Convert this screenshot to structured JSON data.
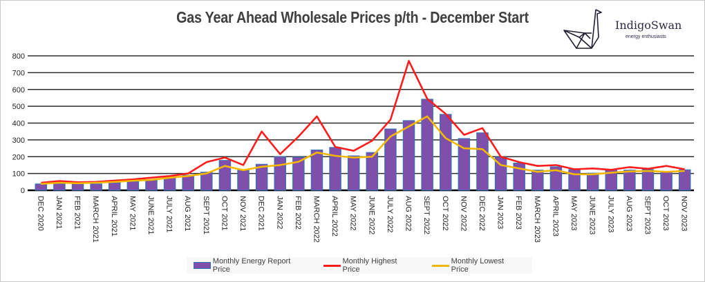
{
  "chart_data": {
    "type": "bar",
    "title": "Gas Year Ahead Wholesale Prices p/th - December Start",
    "xlabel": "",
    "ylabel": "",
    "ylim": [
      0,
      800
    ],
    "yticks": [
      0,
      100,
      200,
      300,
      400,
      500,
      600,
      700,
      800
    ],
    "grid": true,
    "legend_position": "bottom",
    "categories": [
      "DEC 2020",
      "JAN 2021",
      "FEB 2021",
      "MARCH 2021",
      "APRIL 2021",
      "MAY 2021",
      "JUNE 2021",
      "JULY 2021",
      "AUG 2021",
      "SEPT 2021",
      "OCT 2021",
      "NOV 2021",
      "DEC  2021",
      "JAN 2022",
      "FEB 2022",
      "MARCH 2022",
      "APRIL 2022",
      "MAY 2022",
      "JUNE 2022",
      "JULY 2022",
      "AUG 2022",
      "SEPT 2022",
      "OCT 2022",
      "NOV 2022",
      "DEC 2022",
      "JAN 2023",
      "FEB 2023",
      "MARCH 2023",
      "APRIL 2023",
      "MAY 2023",
      "JUNE 2023",
      "JULY 2023",
      "AUG 2023",
      "SEPT 2023",
      "OCT 2023",
      "NOV 2023"
    ],
    "series": [
      {
        "name": "Monthly Energy Report Price",
        "type": "bar",
        "color": "#7f4fab",
        "edge_color": "#2e75b6",
        "values": [
          38,
          40,
          38,
          38,
          45,
          52,
          60,
          85,
          90,
          108,
          178,
          120,
          155,
          200,
          198,
          240,
          255,
          205,
          225,
          365,
          415,
          542,
          452,
          308,
          342,
          198,
          162,
          120,
          140,
          123,
          102,
          122,
          120,
          123,
          112,
          122
        ]
      },
      {
        "name": "Monthly Highest Price",
        "type": "line",
        "color": "#ff1c1c",
        "values": [
          45,
          55,
          48,
          50,
          58,
          65,
          75,
          85,
          100,
          168,
          195,
          150,
          350,
          215,
          320,
          440,
          258,
          235,
          295,
          420,
          770,
          545,
          455,
          330,
          370,
          200,
          168,
          145,
          150,
          125,
          130,
          122,
          138,
          128,
          145,
          125
        ]
      },
      {
        "name": "Monthly Lowest Price",
        "type": "line",
        "color": "#f5b800",
        "values": [
          38,
          45,
          42,
          45,
          50,
          57,
          62,
          75,
          85,
          100,
          145,
          120,
          140,
          150,
          170,
          225,
          205,
          195,
          200,
          320,
          380,
          440,
          310,
          250,
          245,
          150,
          130,
          110,
          120,
          95,
          95,
          105,
          112,
          115,
          110,
          115
        ]
      }
    ]
  },
  "logo": {
    "name": "IndigoSwan",
    "tagline": "energy enthusiasts",
    "icon": "origami-swan-icon"
  }
}
